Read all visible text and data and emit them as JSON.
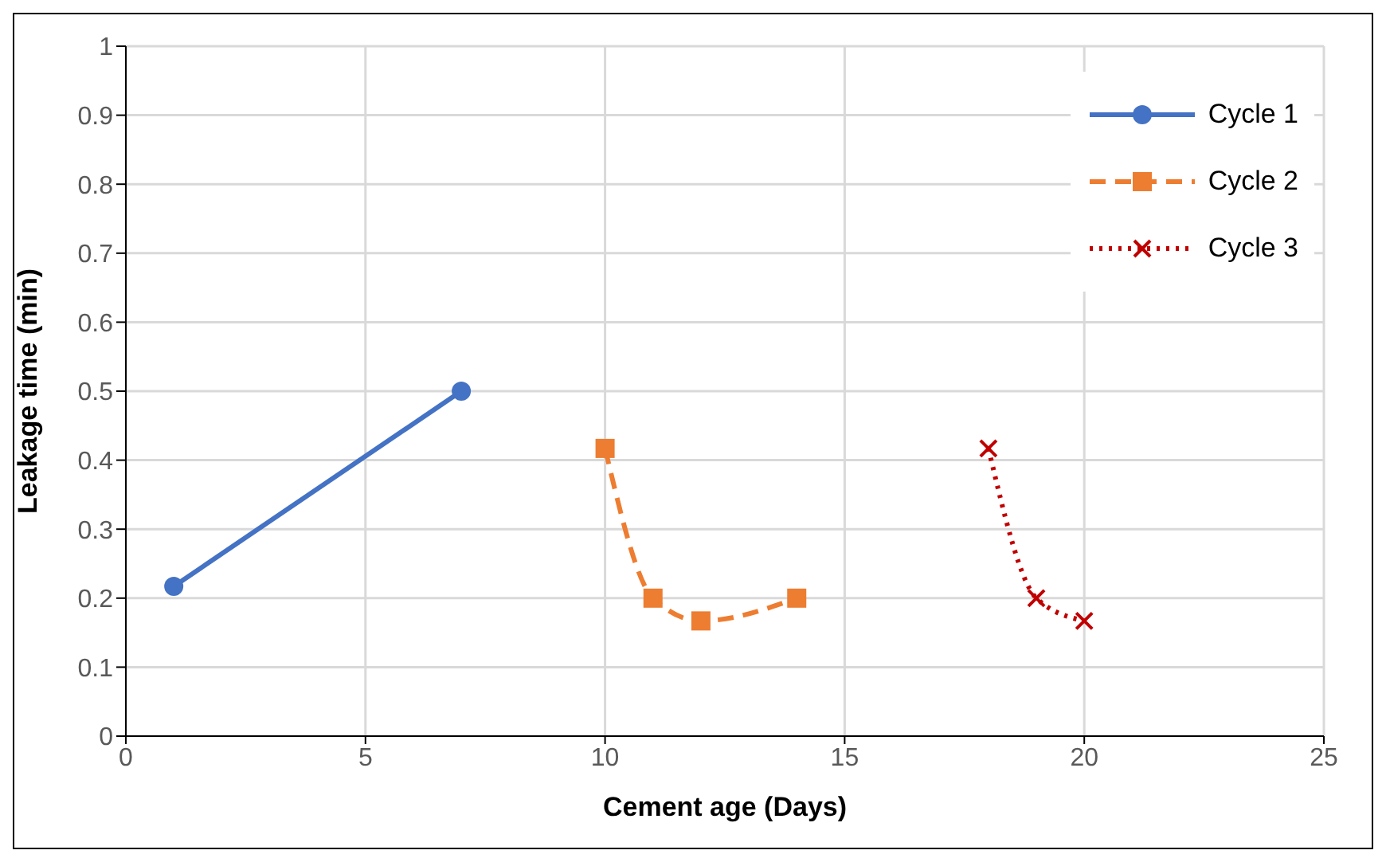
{
  "chart_data": {
    "type": "line",
    "xlabel": "Cement age (Days)",
    "ylabel": "Leakage time (min)",
    "xlim": [
      0,
      25
    ],
    "xticks": [
      0,
      5,
      10,
      15,
      20,
      25
    ],
    "ylim": [
      0,
      1
    ],
    "yticks": [
      0,
      0.1,
      0.2,
      0.3,
      0.4,
      0.5,
      0.6,
      0.7,
      0.8,
      0.9,
      1
    ],
    "grid": true,
    "legend": "top right",
    "series": [
      {
        "name": "Cycle 1",
        "color": "#4472c4",
        "x": [
          1,
          7
        ],
        "values": [
          0.217,
          0.5
        ],
        "marker": "circle",
        "line_style": "solid"
      },
      {
        "name": "Cycle 2",
        "color": "#ed7d31",
        "x": [
          10,
          11,
          12,
          14
        ],
        "values": [
          0.417,
          0.2,
          0.167,
          0.2
        ],
        "marker": "square",
        "line_style": "dashed"
      },
      {
        "name": "Cycle 3",
        "color": "#c00000",
        "x": [
          18,
          19,
          20
        ],
        "values": [
          0.417,
          0.2,
          0.167
        ],
        "marker": "cross",
        "line_style": "dotted"
      }
    ]
  }
}
